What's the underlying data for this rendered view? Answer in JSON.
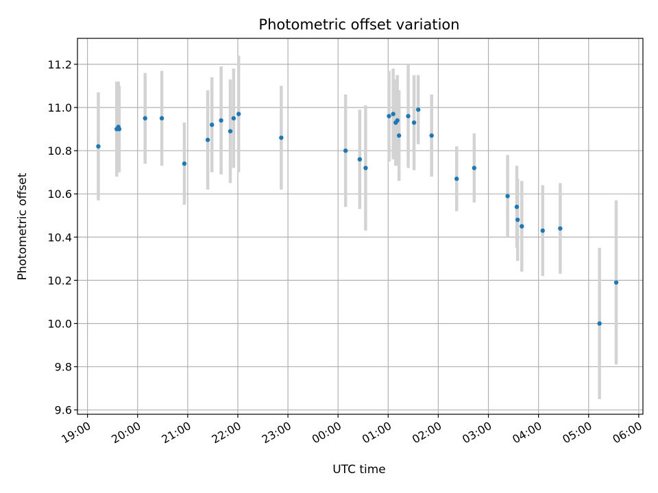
{
  "chart_data": {
    "type": "scatter",
    "title": "Photometric offset variation",
    "xlabel": "UTC time",
    "ylabel": "Photometric offset",
    "x_unit": "UTC, night spanning midnight",
    "xticks": [
      "19:00",
      "20:00",
      "21:00",
      "22:00",
      "23:00",
      "00:00",
      "01:00",
      "02:00",
      "03:00",
      "04:00",
      "05:00",
      "06:00"
    ],
    "yticks": [
      "9.6",
      "9.8",
      "10.0",
      "10.2",
      "10.4",
      "10.6",
      "10.8",
      "11.0",
      "11.2"
    ],
    "ylim": [
      9.58,
      11.32
    ],
    "xlim": [
      "18:48",
      "06:05"
    ],
    "grid": true,
    "colors": {
      "points": "#1f77b4",
      "errorbars": "#d3d3d3",
      "grid": "#b0b0b0"
    },
    "points": [
      {
        "x": "19:13",
        "y": 10.82,
        "err": 0.25
      },
      {
        "x": "19:35",
        "y": 10.9,
        "err": 0.22
      },
      {
        "x": "19:37",
        "y": 10.91,
        "err": 0.21
      },
      {
        "x": "19:38",
        "y": 10.9,
        "err": 0.2
      },
      {
        "x": "20:09",
        "y": 10.95,
        "err": 0.21
      },
      {
        "x": "20:29",
        "y": 10.95,
        "err": 0.22
      },
      {
        "x": "20:56",
        "y": 10.74,
        "err": 0.19
      },
      {
        "x": "21:24",
        "y": 10.85,
        "err": 0.23
      },
      {
        "x": "21:29",
        "y": 10.92,
        "err": 0.22
      },
      {
        "x": "21:40",
        "y": 10.94,
        "err": 0.25
      },
      {
        "x": "21:51",
        "y": 10.89,
        "err": 0.24
      },
      {
        "x": "21:55",
        "y": 10.95,
        "err": 0.23
      },
      {
        "x": "22:01",
        "y": 10.97,
        "err": 0.27
      },
      {
        "x": "22:52",
        "y": 10.86,
        "err": 0.24
      },
      {
        "x": "00:09",
        "y": 10.8,
        "err": 0.26
      },
      {
        "x": "00:26",
        "y": 10.76,
        "err": 0.23
      },
      {
        "x": "00:33",
        "y": 10.72,
        "err": 0.29
      },
      {
        "x": "01:01",
        "y": 10.96,
        "err": 0.21
      },
      {
        "x": "01:06",
        "y": 10.97,
        "err": 0.21
      },
      {
        "x": "01:09",
        "y": 10.93,
        "err": 0.2
      },
      {
        "x": "01:11",
        "y": 10.94,
        "err": 0.21
      },
      {
        "x": "01:13",
        "y": 10.87,
        "err": 0.21
      },
      {
        "x": "01:24",
        "y": 10.96,
        "err": 0.24
      },
      {
        "x": "01:31",
        "y": 10.93,
        "err": 0.22
      },
      {
        "x": "01:36",
        "y": 10.99,
        "err": 0.16
      },
      {
        "x": "01:52",
        "y": 10.87,
        "err": 0.19
      },
      {
        "x": "02:22",
        "y": 10.67,
        "err": 0.15
      },
      {
        "x": "02:43",
        "y": 10.72,
        "err": 0.16
      },
      {
        "x": "03:23",
        "y": 10.59,
        "err": 0.19
      },
      {
        "x": "03:34",
        "y": 10.54,
        "err": 0.19
      },
      {
        "x": "03:35",
        "y": 10.48,
        "err": 0.19
      },
      {
        "x": "03:40",
        "y": 10.45,
        "err": 0.21
      },
      {
        "x": "04:05",
        "y": 10.43,
        "err": 0.21
      },
      {
        "x": "04:26",
        "y": 10.44,
        "err": 0.21
      },
      {
        "x": "05:13",
        "y": 10.0,
        "err": 0.35
      },
      {
        "x": "05:33",
        "y": 10.19,
        "err": 0.38
      }
    ]
  }
}
